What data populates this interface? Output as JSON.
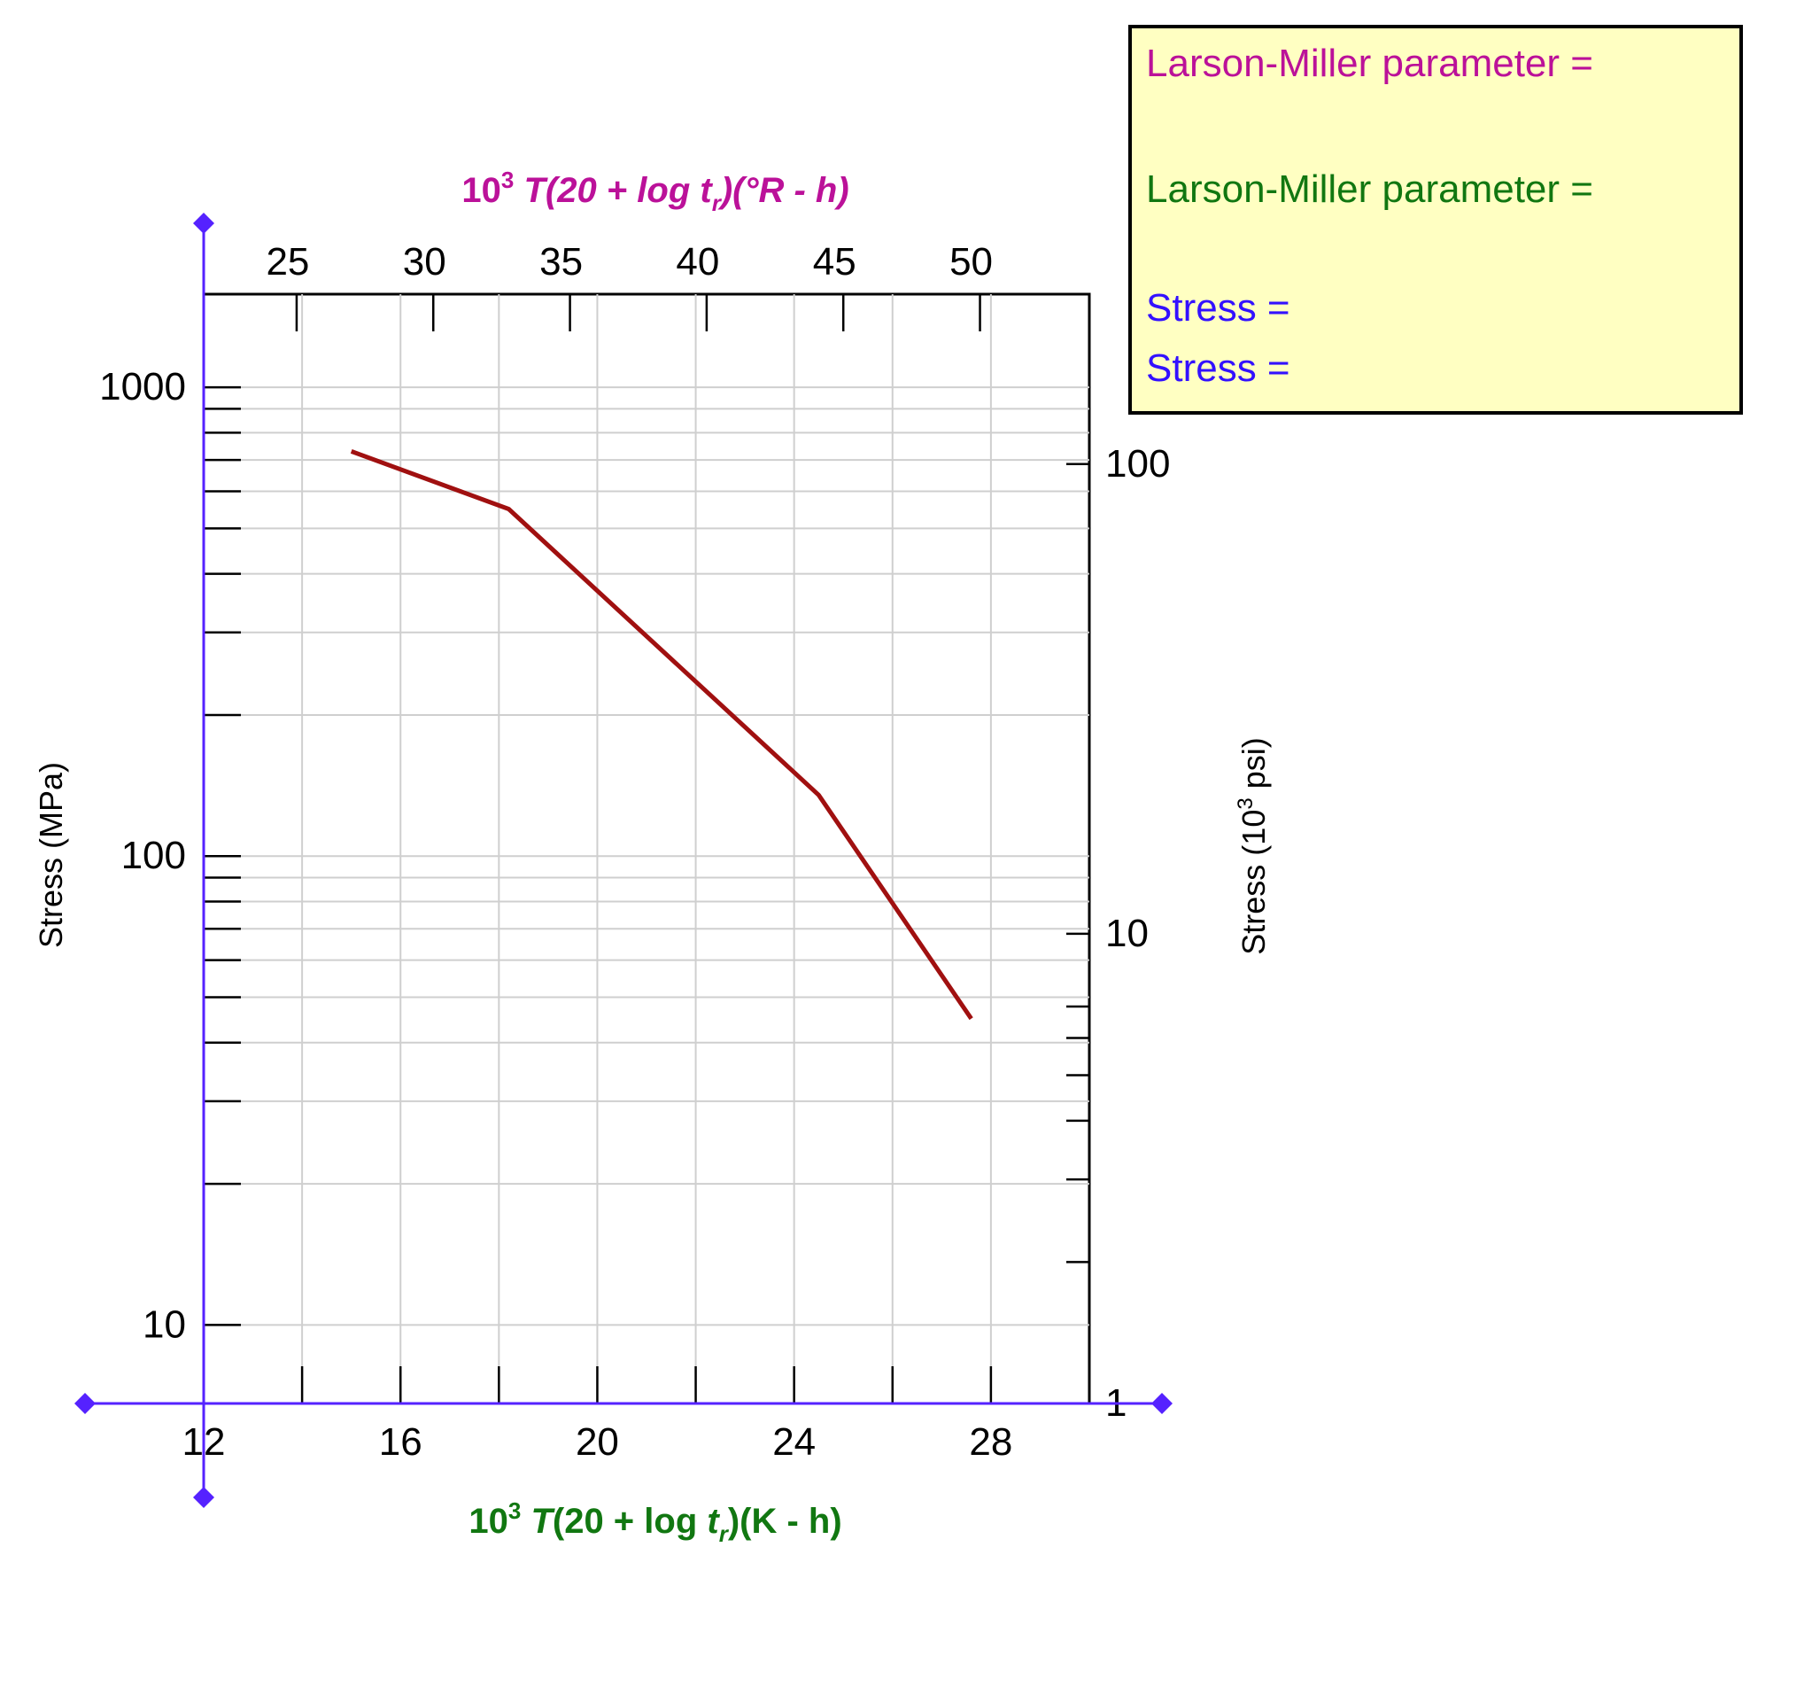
{
  "chart_data": {
    "type": "line",
    "bottom_axis": {
      "label_prefix": "10",
      "label_exp": "3",
      "label_T": "T",
      "label_mid": "(20 + log ",
      "label_t": "t",
      "label_sub": "r",
      "label_suffix": ")(K - h)",
      "range": [
        12,
        30
      ],
      "ticks": [
        12,
        16,
        20,
        24,
        28
      ],
      "tick_labels": [
        "12",
        "16",
        "20",
        "24",
        "28"
      ],
      "color": "#117711"
    },
    "top_axis": {
      "label_prefix": "10",
      "label_exp": "3",
      "label_T": "T",
      "label_mid": "(20 + log ",
      "label_t": "t",
      "label_sub": "r",
      "label_suffix": ")(°R - h)",
      "range": [
        21.6,
        54
      ],
      "ticks": [
        25,
        30,
        35,
        40,
        45,
        50
      ],
      "tick_labels": [
        "25",
        "30",
        "35",
        "40",
        "45",
        "50"
      ],
      "color": "#bb1199"
    },
    "left_axis": {
      "label": "Stress (MPa)",
      "scale": "log",
      "range": [
        6.8,
        1580
      ],
      "major_ticks": [
        10,
        100,
        1000
      ],
      "major_labels": [
        "10",
        "100",
        "1000"
      ],
      "minor_ticks": [
        20,
        30,
        40,
        50,
        60,
        70,
        80,
        90,
        200,
        300,
        400,
        500,
        600,
        700,
        800,
        900
      ]
    },
    "right_axis": {
      "label_prefix": "Stress (10",
      "label_exp": "3",
      "label_suffix": " psi)",
      "scale": "log",
      "range": [
        1,
        230
      ],
      "major_ticks": [
        1,
        10,
        100
      ],
      "major_labels": [
        "1",
        "10",
        "100"
      ],
      "minor_ticks": [
        2,
        3,
        4,
        5,
        6,
        7
      ]
    },
    "grid": true,
    "series": [
      {
        "x": [
          15.0,
          18.2,
          24.5,
          27.6
        ],
        "y": [
          730,
          550,
          135,
          45
        ],
        "color": "#a01010"
      }
    ]
  },
  "readout": {
    "lmp_label_1": "Larson-Miller parameter =",
    "lmp_label_2": "Larson-Miller parameter =",
    "stress_label_1": "Stress =",
    "stress_label_2": "Stress =",
    "color_1": "#bb1199",
    "color_2": "#117711",
    "color_3": "#3311ff",
    "background": "#ffffc2"
  },
  "cursor": {
    "color": "#5522ff"
  }
}
